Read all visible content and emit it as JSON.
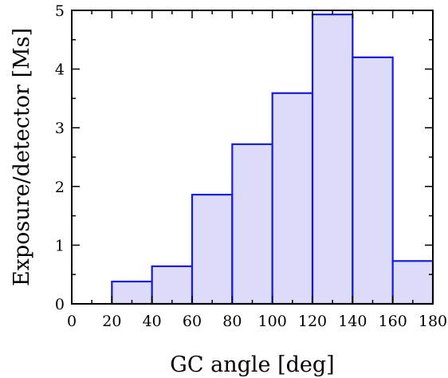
{
  "chart_data": {
    "type": "bar",
    "title": "",
    "xlabel": "GC angle [deg]",
    "ylabel": "Exposure/detector [Ms]",
    "xlim": [
      0,
      180
    ],
    "ylim": [
      0,
      5
    ],
    "xticks": [
      0,
      20,
      40,
      60,
      80,
      100,
      120,
      140,
      160,
      180
    ],
    "yticks": [
      0,
      1,
      2,
      3,
      4,
      5
    ],
    "bins": [
      {
        "x0": 20,
        "x1": 40,
        "value": 0.38
      },
      {
        "x0": 40,
        "x1": 60,
        "value": 0.64
      },
      {
        "x0": 60,
        "x1": 80,
        "value": 1.86
      },
      {
        "x0": 80,
        "x1": 100,
        "value": 2.72
      },
      {
        "x0": 100,
        "x1": 120,
        "value": 3.59
      },
      {
        "x0": 120,
        "x1": 140,
        "value": 4.93
      },
      {
        "x0": 140,
        "x1": 160,
        "value": 4.2
      },
      {
        "x0": 160,
        "x1": 180,
        "value": 0.73
      }
    ],
    "colors": {
      "fill": "#dcdcfa",
      "edge": "#1a1adc",
      "axis": "#000000"
    },
    "grid": false
  }
}
